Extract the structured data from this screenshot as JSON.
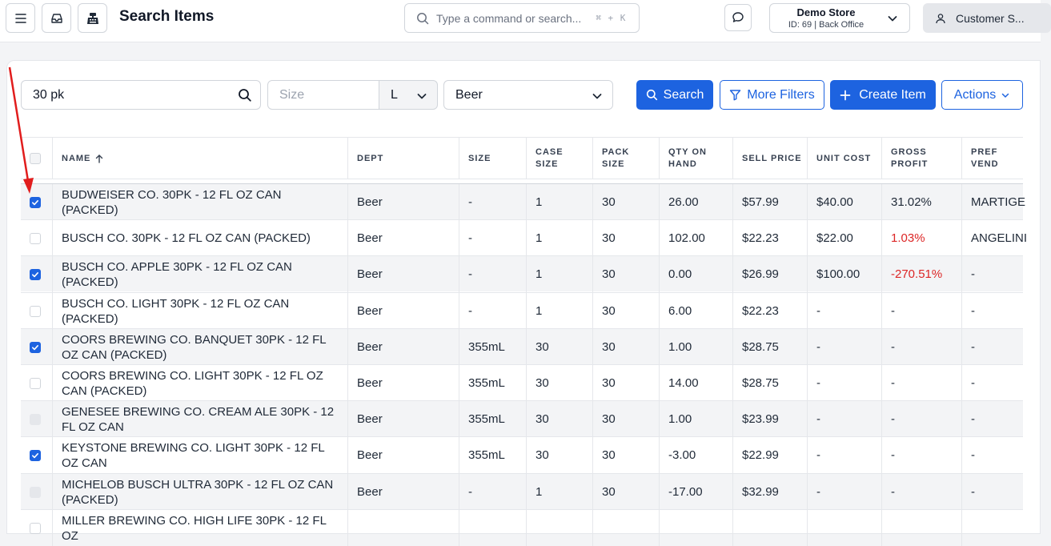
{
  "header": {
    "title": "Search Items",
    "command_placeholder": "Type a command or search...",
    "shortcut": "⌘ + K",
    "store_name": "Demo Store",
    "store_id": "ID: 69 | Back Office",
    "customer_label": "Customer S..."
  },
  "filters": {
    "search_value": "30 pk",
    "size_placeholder": "Size",
    "unit": "L",
    "department": "Beer"
  },
  "buttons": {
    "search": "Search",
    "more_filters": "More Filters",
    "create_item": "Create Item",
    "actions": "Actions"
  },
  "table": {
    "columns": [
      "NAME",
      "DEPT",
      "SIZE",
      "CASE\nSIZE",
      "PACK\nSIZE",
      "QTY ON\nHAND",
      "SELL PRICE",
      "UNIT COST",
      "GROSS\nPROFIT",
      "PREF VEND"
    ],
    "rows": [
      {
        "checked": true,
        "disabled": false,
        "cells": [
          "BUDWEISER CO. 30PK - 12 FL OZ CAN (PACKED)",
          "Beer",
          "-",
          "1",
          "30",
          "26.00",
          "$57.99",
          "$40.00",
          "31.02%",
          "MARTIGE"
        ],
        "neg": false
      },
      {
        "checked": false,
        "disabled": false,
        "cells": [
          "BUSCH CO. 30PK - 12 FL OZ CAN (PACKED)",
          "Beer",
          "-",
          "1",
          "30",
          "102.00",
          "$22.23",
          "$22.00",
          "1.03%",
          "ANGELINI"
        ],
        "neg": true
      },
      {
        "checked": true,
        "disabled": false,
        "cells": [
          "BUSCH CO. APPLE 30PK - 12 FL OZ CAN (PACKED)",
          "Beer",
          "-",
          "1",
          "30",
          "0.00",
          "$26.99",
          "$100.00",
          "-270.51%",
          "-"
        ],
        "neg": true
      },
      {
        "checked": false,
        "disabled": false,
        "cells": [
          "BUSCH CO. LIGHT 30PK - 12 FL OZ CAN (PACKED)",
          "Beer",
          "-",
          "1",
          "30",
          "6.00",
          "$22.23",
          "-",
          "-",
          "-"
        ],
        "neg": false
      },
      {
        "checked": true,
        "disabled": false,
        "cells": [
          "COORS BREWING CO. BANQUET 30PK - 12 FL OZ CAN (PACKED)",
          "Beer",
          "355mL",
          "30",
          "30",
          "1.00",
          "$28.75",
          "-",
          "-",
          "-"
        ],
        "neg": false
      },
      {
        "checked": false,
        "disabled": false,
        "cells": [
          "COORS BREWING CO. LIGHT 30PK - 12 FL OZ CAN (PACKED)",
          "Beer",
          "355mL",
          "30",
          "30",
          "14.00",
          "$28.75",
          "-",
          "-",
          "-"
        ],
        "neg": false
      },
      {
        "checked": false,
        "disabled": true,
        "cells": [
          "GENESEE BREWING CO. CREAM ALE 30PK - 12 FL OZ CAN",
          "Beer",
          "355mL",
          "30",
          "30",
          "1.00",
          "$23.99",
          "-",
          "-",
          "-"
        ],
        "neg": false
      },
      {
        "checked": true,
        "disabled": false,
        "cells": [
          "KEYSTONE BREWING CO. LIGHT 30PK - 12 FL OZ CAN",
          "Beer",
          "355mL",
          "30",
          "30",
          "-3.00",
          "$22.99",
          "-",
          "-",
          "-"
        ],
        "neg": false
      },
      {
        "checked": false,
        "disabled": true,
        "cells": [
          "MICHELOB BUSCH ULTRA 30PK - 12 FL OZ CAN (PACKED)",
          "Beer",
          "-",
          "1",
          "30",
          "-17.00",
          "$32.99",
          "-",
          "-",
          "-"
        ],
        "neg": false
      },
      {
        "checked": false,
        "disabled": false,
        "cells": [
          "MILLER BREWING CO. HIGH LIFE 30PK - 12 FL OZ",
          "",
          "",
          "",
          "",
          "",
          "",
          "",
          "",
          ""
        ],
        "neg": false
      }
    ]
  },
  "colors": {
    "primary": "#1d63e0",
    "negative": "#dc2626",
    "annotation_arrow": "#e11d1d"
  },
  "icons": [
    "menu-icon",
    "inbox-icon",
    "cash-register-icon",
    "search-icon",
    "chat-icon",
    "chevron-down-icon",
    "user-icon",
    "filter-icon",
    "plus-icon",
    "check-icon",
    "sort-up-arrow-icon"
  ]
}
